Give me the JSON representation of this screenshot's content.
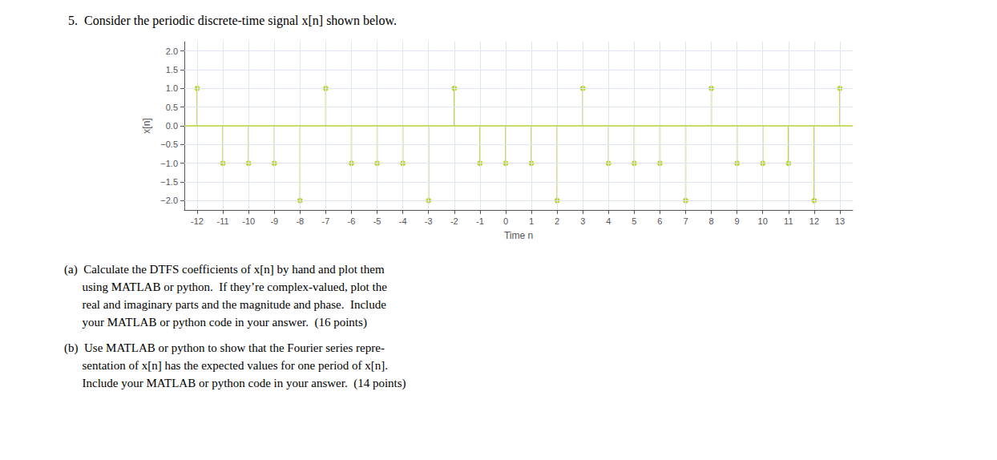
{
  "chart_data": {
    "type": "stem",
    "title": "5.  Consider the periodic discrete-time signal x[n] shown below.",
    "annotations": [
      [
        "(a)  Calculate the DTFS coefficients of x[n] by hand and plot them",
        "      using MATLAB or python.  If they’re complex-valued, plot the",
        "      real and imaginary parts and the magnitude and phase.  Include",
        "      your MATLAB or python code in your answer.  (16 points)"
      ],
      [
        "(b)  Use MATLAB or python to show that the Fourier series repre-",
        "      sentation of x[n] has the expected values for one period of x[n].",
        "      Include your MATLAB or python code in your answer.  (14 points)"
      ]
    ],
    "xlabel": "Time n",
    "ylabel": "x[n]",
    "x": [
      -12,
      -11,
      -10,
      -9,
      -8,
      -7,
      -6,
      -5,
      -4,
      -3,
      -2,
      -1,
      0,
      1,
      2,
      3,
      4,
      5,
      6,
      7,
      8,
      9,
      10,
      11,
      12,
      13
    ],
    "values": [
      1,
      -1,
      -1,
      -1,
      -2,
      1,
      -1,
      -1,
      -1,
      -2,
      1,
      -1,
      -1,
      -1,
      -2,
      1,
      -1,
      -1,
      -1,
      -2,
      1,
      -1,
      -1,
      -1,
      -2,
      1
    ],
    "xlim": [
      -12.5,
      13.5
    ],
    "ylim": [
      -2.25,
      2.25
    ],
    "xticks": [
      -12,
      -11,
      -10,
      -9,
      -8,
      -7,
      -6,
      -5,
      -4,
      -3,
      -2,
      -1,
      0,
      1,
      2,
      3,
      4,
      5,
      6,
      7,
      8,
      9,
      10,
      11,
      12,
      13
    ],
    "yticks": [
      {
        "value": -2.0,
        "label": "−2.0"
      },
      {
        "value": -1.5,
        "label": "−1.5"
      },
      {
        "value": -1.0,
        "label": "−1.0"
      },
      {
        "value": -0.5,
        "label": "−0.5"
      },
      {
        "value": 0.0,
        "label": "0.0"
      },
      0.5,
      {
        "value": 1.0,
        "label": "1.0"
      },
      1.5,
      {
        "value": 2.0,
        "label": "2.0"
      }
    ],
    "grid": true
  }
}
